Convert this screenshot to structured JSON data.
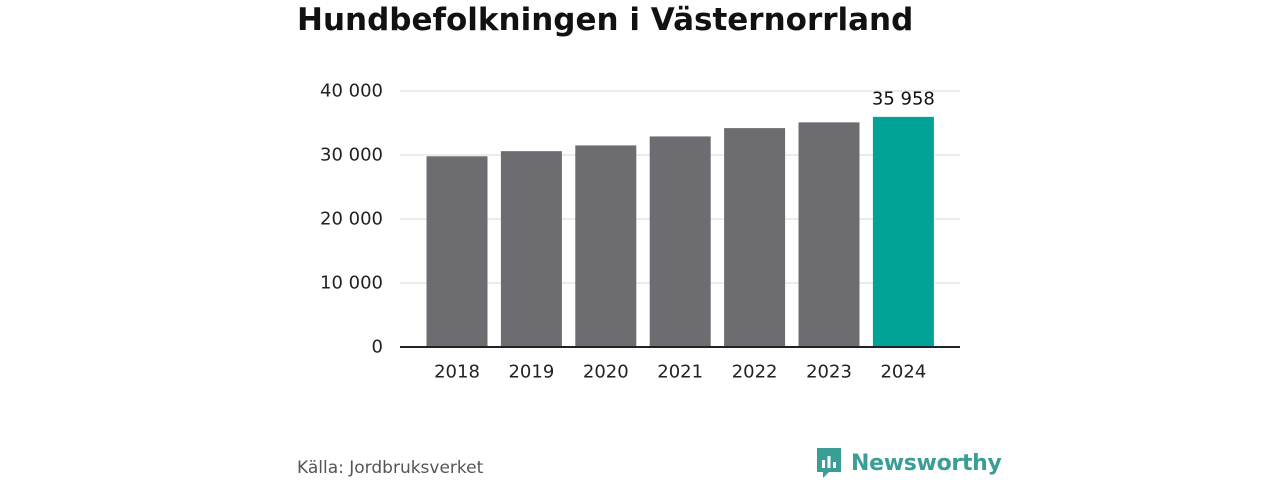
{
  "title": "Hundbefolkningen i Västernorrland",
  "source": "Källa: Jordbruksverket",
  "brand": {
    "name": "Newsworthy",
    "icon": "newsworthy-logo-icon",
    "color": "#3a9e96"
  },
  "chart_data": {
    "type": "bar",
    "title": "Hundbefolkningen i Västernorrland",
    "categories": [
      "2018",
      "2019",
      "2020",
      "2021",
      "2022",
      "2023",
      "2024"
    ],
    "values": [
      29800,
      30600,
      31500,
      32900,
      34200,
      35100,
      35958
    ],
    "ylim": [
      0,
      40000
    ],
    "yticks": [
      0,
      10000,
      20000,
      30000,
      40000
    ],
    "ytick_labels": [
      "0",
      "10 000",
      "20 000",
      "30 000",
      "40 000"
    ],
    "grid": true,
    "legend": "none",
    "annotations": [
      {
        "category": "2024",
        "text": "35 958"
      }
    ],
    "colors": {
      "default": "#6d6c71",
      "highlight": "#00a396",
      "highlight_index": 6
    }
  }
}
